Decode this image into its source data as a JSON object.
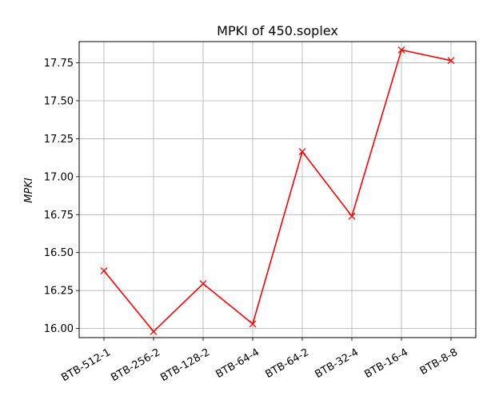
{
  "chart_data": {
    "type": "line",
    "title": "MPKI of 450.soplex",
    "xlabel": "",
    "ylabel": "MPKI",
    "categories": [
      "BTB-512-1",
      "BTB-256-2",
      "BTB-128-2",
      "BTB-64-4",
      "BTB-64-2",
      "BTB-32-4",
      "BTB-16-4",
      "BTB-8-8"
    ],
    "series": [
      {
        "values": [
          16.38,
          15.98,
          16.295,
          16.03,
          17.165,
          16.74,
          17.835,
          17.765
        ],
        "color": "#ff0000",
        "marker": "x"
      }
    ],
    "ylim": [
      15.94,
      17.89
    ],
    "yticks": [
      16.0,
      16.25,
      16.5,
      16.75,
      17.0,
      17.25,
      17.5,
      17.75
    ],
    "ytick_labels": [
      "16.00",
      "16.25",
      "16.50",
      "16.75",
      "17.00",
      "17.25",
      "17.50",
      "17.75"
    ],
    "grid": true,
    "xtick_rotation": "30 degrees"
  }
}
